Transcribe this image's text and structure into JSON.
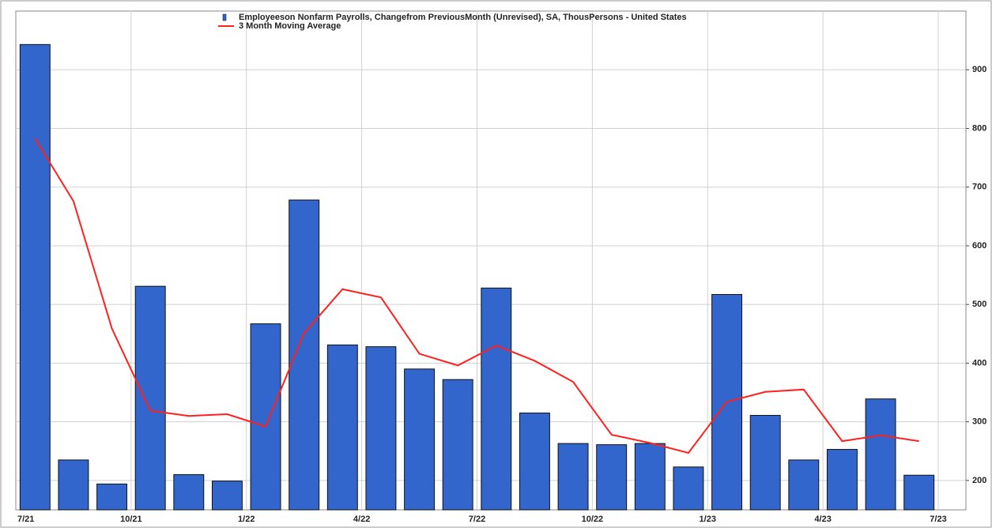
{
  "chart_data": {
    "type": "bar",
    "legend": "top",
    "xticks": [
      "7/21",
      "10/21",
      "1/22",
      "4/22",
      "7/22",
      "10/22",
      "1/23",
      "4/23",
      "7/23"
    ],
    "ylim": [
      150,
      1000
    ],
    "yticks": [
      200,
      300,
      400,
      500,
      600,
      700,
      800,
      900
    ],
    "grid": true,
    "series": [
      {
        "name": "Employeeson Nonfarm Payrolls, Changefrom PreviousMonth (Unrevised), SA, ThousPersons - United States",
        "color": "#3366cc",
        "type": "bar",
        "values": [
          943,
          235,
          194,
          531,
          210,
          199,
          467,
          678,
          431,
          428,
          390,
          372,
          528,
          315,
          263,
          261,
          263,
          223,
          517,
          311,
          235,
          253,
          339,
          209
        ]
      },
      {
        "name": "3 Month Moving Average",
        "color": "#ff2020",
        "type": "line",
        "values": [
          783,
          676,
          459,
          319,
          310,
          313,
          292,
          451,
          526,
          512,
          416,
          396,
          430,
          404,
          368,
          278,
          264,
          247,
          334,
          351,
          355,
          267,
          277,
          267
        ]
      }
    ]
  }
}
